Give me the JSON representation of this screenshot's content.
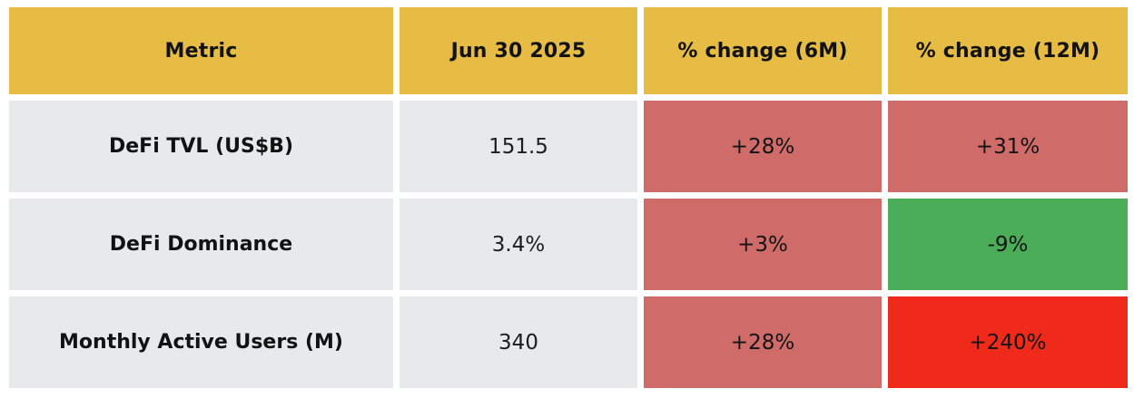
{
  "colors": {
    "header-bg": "#e7bc45",
    "row-bg": "#e7e9ea",
    "red-muted": "#cf6b69",
    "green": "#4cad58",
    "red-bright": "#ef2a1b",
    "text": "#121212",
    "page-bg": "#ffffff"
  },
  "table": {
    "columns": [
      {
        "label": "Metric"
      },
      {
        "label": "Jun 30 2025"
      },
      {
        "label": "% change (6M)"
      },
      {
        "label": "% change (12M)"
      }
    ],
    "rows": [
      {
        "metric": "DeFi TVL (US$B)",
        "value": "151.5",
        "changes": [
          {
            "label": "+28%",
            "tone": "red-muted"
          },
          {
            "label": "+31%",
            "tone": "red-muted"
          }
        ]
      },
      {
        "metric": "DeFi Dominance",
        "value": "3.4%",
        "changes": [
          {
            "label": "+3%",
            "tone": "red-muted"
          },
          {
            "label": "-9%",
            "tone": "green"
          }
        ]
      },
      {
        "metric": "Monthly Active Users (M)",
        "value": "340",
        "changes": [
          {
            "label": "+28%",
            "tone": "red-muted"
          },
          {
            "label": "+240%",
            "tone": "red-bright"
          }
        ]
      }
    ]
  },
  "chart_data": {
    "type": "table",
    "title": "",
    "columns": [
      "Metric",
      "Jun 30 2025",
      "% change (6M)",
      "% change (12M)"
    ],
    "rows": [
      [
        "DeFi TVL (US$B)",
        "151.5",
        "+28%",
        "+31%"
      ],
      [
        "DeFi Dominance",
        "3.4%",
        "+3%",
        "-9%"
      ],
      [
        "Monthly Active Users (M)",
        "340",
        "+28%",
        "+240%"
      ]
    ],
    "cell_colors": {
      "header": "#e7bc45",
      "DeFi TVL (US$B)": {
        "6M": "#cf6b69",
        "12M": "#cf6b69"
      },
      "DeFi Dominance": {
        "6M": "#cf6b69",
        "12M": "#4cad58"
      },
      "Monthly Active Users (M)": {
        "6M": "#cf6b69",
        "12M": "#ef2a1b"
      }
    }
  }
}
